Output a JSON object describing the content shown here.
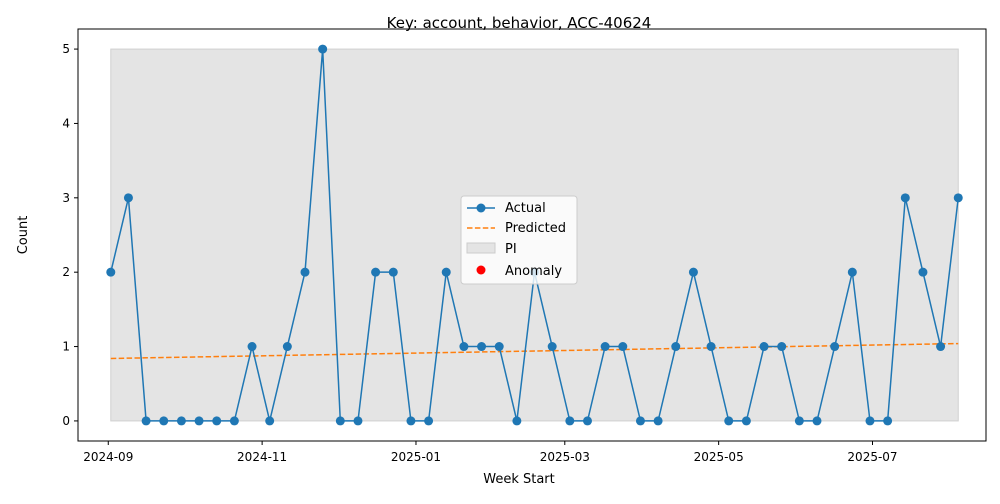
{
  "chart_data": {
    "type": "line",
    "title": "Key: account, behavior, ACC-40624",
    "xlabel": "Week Start",
    "ylabel": "Count",
    "x_tick_labels": [
      "2024-09",
      "2024-11",
      "2025-01",
      "2025-03",
      "2025-05",
      "2025-07"
    ],
    "x_tick_dates": [
      "2024-09-01",
      "2024-11-01",
      "2025-01-01",
      "2025-03-01",
      "2025-05-01",
      "2025-07-01"
    ],
    "x_range": [
      "2024-08-20",
      "2025-08-15"
    ],
    "y_ticks": [
      0,
      1,
      2,
      3,
      4,
      5
    ],
    "y_range": [
      -0.27,
      5.27
    ],
    "grid": false,
    "legend_position": "center",
    "colors": {
      "actual": "#1f77b4",
      "predicted": "#ff7f0e",
      "pi": "#d9d9d9",
      "anomaly": "#ff0000"
    },
    "legend": [
      {
        "key": "actual",
        "label": "Actual"
      },
      {
        "key": "predicted",
        "label": "Predicted"
      },
      {
        "key": "pi",
        "label": "PI"
      },
      {
        "key": "anomaly",
        "label": "Anomaly"
      }
    ],
    "x": [
      "2024-09-02",
      "2024-09-09",
      "2024-09-16",
      "2024-09-23",
      "2024-09-30",
      "2024-10-07",
      "2024-10-14",
      "2024-10-21",
      "2024-10-28",
      "2024-11-04",
      "2024-11-11",
      "2024-11-18",
      "2024-11-25",
      "2024-12-02",
      "2024-12-09",
      "2024-12-16",
      "2024-12-23",
      "2024-12-30",
      "2025-01-06",
      "2025-01-13",
      "2025-01-20",
      "2025-01-27",
      "2025-02-03",
      "2025-02-10",
      "2025-02-17",
      "2025-02-24",
      "2025-03-03",
      "2025-03-10",
      "2025-03-17",
      "2025-03-24",
      "2025-03-31",
      "2025-04-07",
      "2025-04-14",
      "2025-04-21",
      "2025-04-28",
      "2025-05-05",
      "2025-05-12",
      "2025-05-19",
      "2025-05-26",
      "2025-06-02",
      "2025-06-09",
      "2025-06-16",
      "2025-06-23",
      "2025-06-30",
      "2025-07-07",
      "2025-07-14",
      "2025-07-21",
      "2025-07-28",
      "2025-08-04"
    ],
    "series": [
      {
        "key": "actual",
        "name": "Actual",
        "values": [
          2,
          3,
          0,
          0,
          0,
          0,
          0,
          0,
          1,
          0,
          1,
          2,
          5,
          0,
          0,
          2,
          2,
          0,
          0,
          2,
          1,
          1,
          1,
          0,
          2,
          1,
          0,
          0,
          1,
          1,
          0,
          0,
          1,
          2,
          1,
          0,
          0,
          1,
          1,
          0,
          0,
          1,
          2,
          0,
          0,
          3,
          2,
          1,
          3
        ]
      },
      {
        "key": "predicted",
        "name": "Predicted",
        "start": 0.84,
        "end": 1.04
      }
    ],
    "pi": {
      "lower": 0,
      "upper": 5
    },
    "anomalies": []
  }
}
